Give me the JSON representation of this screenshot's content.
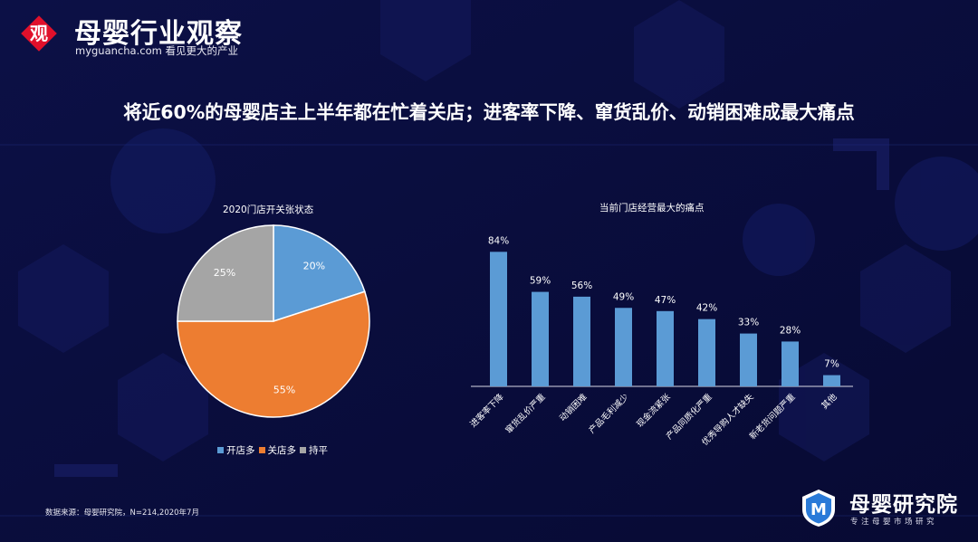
{
  "header": {
    "logo_char": "观",
    "logo_title": "母婴行业观察",
    "logo_subtitle": "myguancha.com 看见更大的产业"
  },
  "headline": "将近60%的母婴店主上半年都在忙着关店；进客率下降、窜货乱价、动销困难成最大痛点",
  "chart_data": [
    {
      "type": "pie",
      "title": "2020门店开关张状态",
      "categories": [
        "开店多",
        "关店多",
        "持平"
      ],
      "values": [
        20,
        55,
        25
      ],
      "labels": [
        "20%",
        "55%",
        "25%"
      ],
      "colors": [
        "#5b9bd5",
        "#ed7d31",
        "#a5a5a5"
      ],
      "start": "12 o'clock, clockwise",
      "legend_position": "bottom"
    },
    {
      "type": "bar",
      "title": "当前门店经营最大的痛点",
      "categories": [
        "进客率下降",
        "窜货乱价严重",
        "动销困难",
        "产品毛利减少",
        "现金流紧张",
        "产品同质化严重",
        "优秀导购人才缺失",
        "新老货问题严重",
        "其他"
      ],
      "values": [
        84,
        59,
        56,
        49,
        47,
        42,
        33,
        28,
        7
      ],
      "labels": [
        "84%",
        "59%",
        "56%",
        "49%",
        "47%",
        "42%",
        "33%",
        "28%",
        "7%"
      ],
      "unit": "%",
      "ylim": [
        0,
        100
      ],
      "color": "#5b9bd5",
      "grid": false,
      "category_labels_rotated": true
    }
  ],
  "footer": {
    "source": "数据来源：母婴研究院，N=214,2020年7月",
    "brand_name": "母婴研究院",
    "brand_slogan": "专注母婴市场研究",
    "brand_icon_letter": "M"
  },
  "colors": {
    "background": "#0a0d3d",
    "logo_red": "#e0102b",
    "brand_blue": "#2a7ad8"
  }
}
